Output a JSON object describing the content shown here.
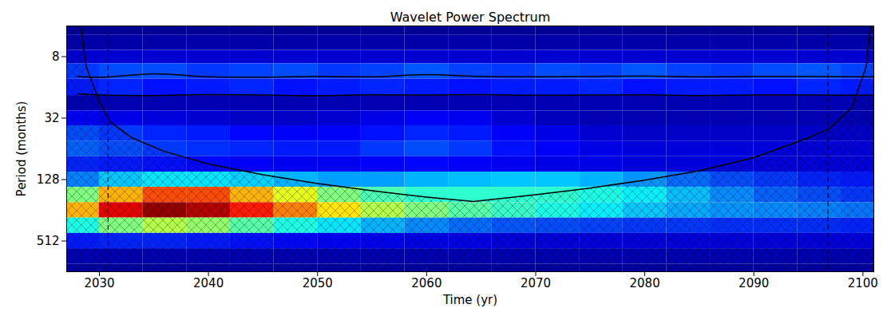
{
  "chart_data": {
    "type": "heatmap",
    "title": "Wavelet Power Spectrum",
    "x_label": "Time (yr)",
    "y_label": "Period (months)",
    "log": "y",
    "xlim": [
      2027,
      2101
    ],
    "ylim": [
      4,
      1024
    ],
    "xticks": [
      2030,
      2040,
      2050,
      2060,
      2070,
      2080,
      2090,
      2100
    ],
    "yticks": [
      8,
      32,
      128,
      512
    ],
    "zlim": [
      0,
      10
    ],
    "x": [
      2028,
      2032,
      2036,
      2040,
      2044,
      2048,
      2052,
      2056,
      2060,
      2064,
      2068,
      2072,
      2076,
      2080,
      2084,
      2088,
      2092,
      2096,
      2100
    ],
    "periods": [
      4,
      6,
      8,
      11,
      16,
      23,
      32,
      45,
      64,
      91,
      128,
      181,
      256,
      362,
      512,
      724,
      1024
    ],
    "power": [
      [
        0.2,
        0.2,
        0.2,
        0.2,
        0.2,
        0.2,
        0.2,
        0.2,
        0.2,
        0.2,
        0.2,
        0.2,
        0.2,
        0.2,
        0.2,
        0.2,
        0.2,
        0.2,
        0.2
      ],
      [
        0.4,
        0.4,
        0.4,
        0.4,
        0.4,
        0.4,
        0.4,
        0.4,
        0.4,
        0.4,
        0.4,
        0.4,
        0.4,
        0.4,
        0.4,
        0.4,
        0.4,
        0.4,
        0.4
      ],
      [
        0.8,
        0.8,
        0.8,
        0.8,
        0.8,
        0.8,
        0.8,
        0.8,
        0.8,
        0.8,
        0.8,
        0.8,
        0.8,
        0.8,
        0.8,
        0.8,
        0.8,
        0.8,
        0.8
      ],
      [
        1.8,
        2.0,
        2.0,
        1.8,
        1.9,
        2.0,
        1.8,
        1.9,
        2.1,
        1.9,
        1.8,
        2.0,
        1.9,
        2.1,
        1.9,
        1.8,
        2.0,
        2.1,
        1.9
      ],
      [
        1.5,
        1.6,
        1.4,
        1.5,
        1.6,
        1.4,
        1.5,
        1.6,
        1.5,
        1.4,
        1.5,
        1.5,
        1.6,
        1.4,
        1.5,
        1.5,
        1.4,
        1.6,
        1.5
      ],
      [
        0.5,
        0.5,
        0.5,
        0.5,
        0.5,
        0.5,
        0.5,
        0.5,
        0.5,
        0.5,
        0.5,
        0.5,
        0.5,
        0.5,
        0.5,
        0.5,
        0.5,
        0.5,
        0.5
      ],
      [
        1.2,
        1.0,
        0.9,
        0.8,
        0.7,
        0.7,
        0.8,
        1.0,
        1.2,
        1.1,
        0.8,
        0.6,
        0.5,
        0.5,
        0.5,
        0.5,
        0.5,
        0.5,
        0.5
      ],
      [
        2.0,
        1.8,
        1.6,
        1.5,
        1.3,
        1.2,
        1.2,
        1.4,
        1.6,
        1.5,
        1.2,
        1.0,
        0.8,
        0.7,
        0.7,
        0.7,
        0.7,
        0.7,
        0.7
      ],
      [
        2.2,
        2.0,
        1.8,
        1.7,
        1.6,
        1.5,
        1.5,
        1.8,
        2.0,
        1.8,
        1.4,
        1.2,
        1.0,
        0.9,
        0.9,
        0.9,
        0.9,
        0.9,
        0.9
      ],
      [
        1.6,
        1.5,
        1.4,
        1.3,
        1.2,
        1.1,
        1.1,
        1.2,
        1.3,
        1.2,
        1.1,
        1.0,
        1.0,
        0.9,
        0.9,
        0.9,
        0.9,
        0.9,
        0.9
      ],
      [
        2.5,
        3.2,
        3.5,
        3.5,
        3.3,
        3.0,
        2.8,
        2.8,
        3.0,
        3.1,
        3.2,
        3.2,
        3.0,
        2.7,
        2.3,
        2.0,
        1.8,
        1.6,
        1.5
      ],
      [
        5.0,
        7.0,
        8.0,
        8.0,
        7.0,
        6.0,
        5.0,
        4.5,
        4.2,
        4.2,
        4.2,
        4.2,
        4.0,
        3.6,
        3.1,
        2.6,
        2.2,
        2.0,
        1.8
      ],
      [
        7.0,
        9.0,
        9.8,
        9.5,
        8.5,
        7.5,
        6.5,
        5.5,
        5.0,
        4.6,
        4.3,
        4.0,
        3.6,
        3.2,
        2.9,
        2.7,
        2.6,
        2.5,
        2.4
      ],
      [
        4.0,
        5.0,
        5.5,
        5.2,
        4.6,
        4.0,
        3.5,
        3.0,
        2.6,
        2.3,
        2.1,
        2.0,
        1.9,
        1.8,
        1.8,
        1.7,
        1.7,
        1.7,
        1.6
      ],
      [
        1.5,
        1.6,
        1.6,
        1.5,
        1.4,
        1.3,
        1.2,
        1.1,
        1.0,
        1.0,
        0.9,
        0.9,
        0.9,
        0.9,
        0.9,
        0.9,
        0.9,
        0.9,
        0.9
      ],
      [
        0.5,
        0.5,
        0.5,
        0.5,
        0.5,
        0.5,
        0.5,
        0.5,
        0.5,
        0.5,
        0.5,
        0.5,
        0.5,
        0.5,
        0.5,
        0.5,
        0.5,
        0.5,
        0.5
      ],
      [
        0.3,
        0.3,
        0.3,
        0.3,
        0.3,
        0.3,
        0.3,
        0.3,
        0.3,
        0.3,
        0.3,
        0.3,
        0.3,
        0.3,
        0.3,
        0.3,
        0.3,
        0.3,
        0.3
      ]
    ],
    "cone_of_influence": {
      "x": [
        2028.3,
        2028.8,
        2030,
        2031,
        2033,
        2036,
        2040,
        2045,
        2050,
        2055,
        2060,
        2064.3,
        2070,
        2075,
        2080,
        2085,
        2090,
        2095,
        2097,
        2099,
        2100.3,
        2100.7
      ],
      "periods": [
        4,
        10,
        22,
        35,
        50,
        68,
        90,
        115,
        140,
        165,
        190,
        210,
        180,
        155,
        130,
        105,
        78,
        50,
        40,
        25,
        10,
        4
      ]
    },
    "significance_contours": [
      {
        "x": [
          2028,
          2030,
          2035,
          2040,
          2045,
          2050,
          2055,
          2060,
          2065,
          2070,
          2075,
          2080,
          2085,
          2090,
          2095,
          2101
        ],
        "periods": [
          12.5,
          12.8,
          11.8,
          12.6,
          12.7,
          12.5,
          12.6,
          12,
          12.5,
          12.6,
          12.5,
          12.4,
          12.6,
          12.5,
          12.5,
          12.6
        ]
      },
      {
        "x": [
          2028,
          2030,
          2035,
          2040,
          2045,
          2050,
          2055,
          2060,
          2065,
          2070,
          2075,
          2080,
          2085,
          2090,
          2095,
          2101
        ],
        "periods": [
          18.5,
          19,
          19.2,
          18.8,
          19,
          19.3,
          18.9,
          19,
          18.8,
          19.1,
          19,
          18.9,
          19.2,
          19,
          19,
          19.1
        ]
      }
    ],
    "vlines": [
      2030.8,
      2096.8
    ]
  }
}
